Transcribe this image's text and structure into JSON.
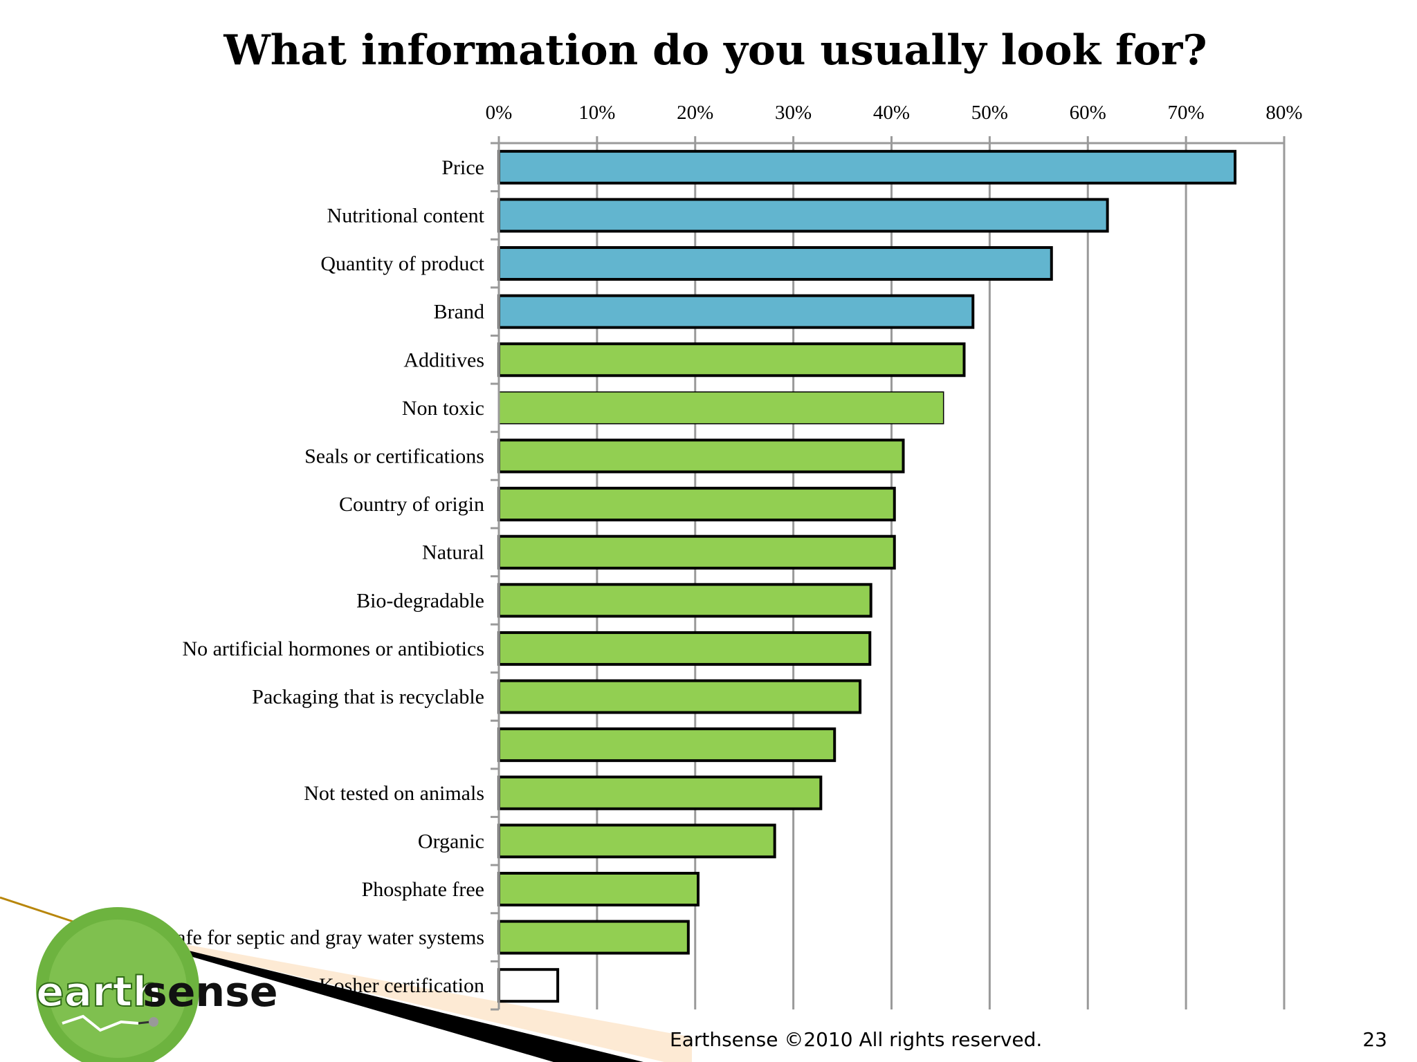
{
  "slide": {
    "title": "What information do you usually look for?",
    "footer": "Earthsense ©2010 All rights reserved.",
    "page_number": "23"
  },
  "logo": {
    "text_part1": "earth",
    "text_part2": "sense"
  },
  "colors": {
    "highlight": "#62b5cf",
    "standard": "#92cf52",
    "minor": "#ffffff",
    "outline": "#000000",
    "grid": "#9a9a9a",
    "logo_green": "#6db33f",
    "decor_gold": "#b8860b",
    "decor_peach": "#fde6cc"
  },
  "chart_data": {
    "type": "bar",
    "orientation": "horizontal",
    "title": "What information do you usually look for?",
    "xlim": [
      0,
      80
    ],
    "x_ticks": [
      "0%",
      "10%",
      "20%",
      "30%",
      "40%",
      "50%",
      "60%",
      "70%",
      "80%"
    ],
    "x_tick_values": [
      0,
      10,
      20,
      30,
      40,
      50,
      60,
      70,
      80
    ],
    "x_axis_position": "top",
    "grid": true,
    "categories": [
      "Price",
      "Nutritional content",
      "Quantity of product",
      "Brand",
      "Additives",
      "Non toxic",
      "Seals or certifications",
      "Country of origin",
      "Natural",
      "Bio-degradable",
      "No artificial hormones or antibiotics",
      "Packaging that is recyclable",
      "",
      "Not tested on animals",
      "Organic",
      "Phosphate free",
      "Safe for septic and gray water systems",
      "Kosher certification"
    ],
    "values": [
      75,
      62,
      56.3,
      48.3,
      47.4,
      45.3,
      41.2,
      40.3,
      40.3,
      37.9,
      37.8,
      36.8,
      34.2,
      32.8,
      28.1,
      20.3,
      19.3,
      6.0
    ],
    "groups": [
      "highlight",
      "highlight",
      "highlight",
      "highlight",
      "standard",
      "standard",
      "standard",
      "standard",
      "standard",
      "standard",
      "standard",
      "standard",
      "standard",
      "standard",
      "standard",
      "standard",
      "standard",
      "minor"
    ]
  }
}
